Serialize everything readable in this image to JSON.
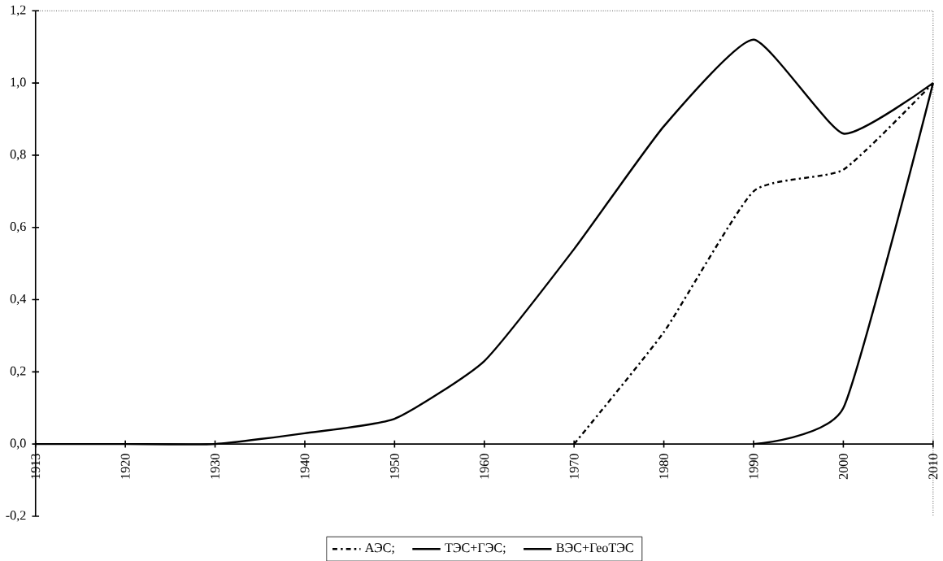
{
  "chart_data": {
    "type": "line",
    "categories": [
      "1913",
      "1920",
      "1930",
      "1940",
      "1950",
      "1960",
      "1970",
      "1980",
      "1990",
      "2000",
      "2010"
    ],
    "series": [
      {
        "name": "АЭС;",
        "color": "#000000",
        "line_style": "dashdot",
        "values": [
          null,
          null,
          null,
          null,
          null,
          null,
          0,
          0.31,
          0.7,
          0.76,
          1.0
        ]
      },
      {
        "name": "ТЭС+ГЭС;",
        "color": "#000000",
        "line_style": "solid",
        "values": [
          0,
          0,
          0,
          0.03,
          0.07,
          0.23,
          0.54,
          0.88,
          1.12,
          0.86,
          1.0
        ]
      },
      {
        "name": "ВЭС+ГеоТЭС",
        "color": "#000000",
        "line_style": "solid",
        "values": [
          null,
          null,
          null,
          null,
          null,
          null,
          null,
          null,
          0,
          0.1,
          1.0
        ]
      }
    ],
    "ylim": [
      -0.2,
      1.2
    ],
    "yticks": [
      {
        "value": -0.2,
        "label": "-0,2"
      },
      {
        "value": 0,
        "label": "0,0"
      },
      {
        "value": 0.2,
        "label": "0,2"
      },
      {
        "value": 0.4,
        "label": "0,4"
      },
      {
        "value": 0.6,
        "label": "0,6"
      },
      {
        "value": 0.8,
        "label": "0,8"
      },
      {
        "value": 1.0,
        "label": "1,0"
      },
      {
        "value": 1.2,
        "label": "1,2"
      }
    ],
    "grid": false,
    "legend": "bottom",
    "marker": "none"
  }
}
